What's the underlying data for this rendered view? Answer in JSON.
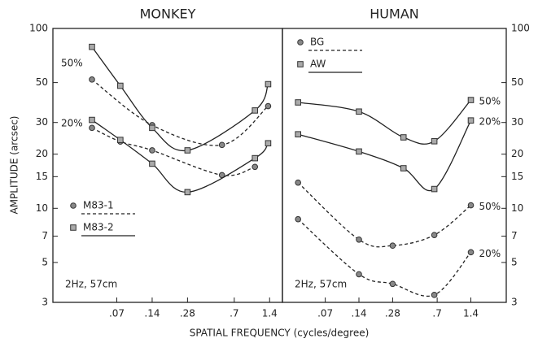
{
  "axis_labels": {
    "x": "SPATIAL FREQUENCY (cycles/degree)",
    "y": "AMPLITUDE (arcsec)"
  },
  "chart_data": [
    {
      "type": "line",
      "title": "MONKEY",
      "xscale": "log",
      "yscale": "log",
      "xlim": [
        0.02,
        1.8
      ],
      "ylim": [
        3,
        100
      ],
      "xticks": [
        {
          "value": 0.07,
          "label": ".07"
        },
        {
          "value": 0.14,
          "label": ".14"
        },
        {
          "value": 0.28,
          "label": ".28"
        },
        {
          "value": 0.7,
          "label": ".7"
        },
        {
          "value": 1.4,
          "label": "1.4"
        }
      ],
      "yticks": [
        3,
        5,
        7,
        10,
        15,
        20,
        30,
        50,
        100
      ],
      "annotations": [
        "50%",
        "20%",
        "2Hz,  57cm"
      ],
      "series": [
        {
          "name": "M83-1",
          "marker": "circle",
          "dashed": true,
          "color": "#222",
          "curves": [
            {
              "x": [
                0.043,
                0.14,
                0.55,
                1.36
              ],
              "values": [
                52,
                29,
                22.5,
                37
              ]
            },
            {
              "x": [
                0.043,
                0.075,
                0.14,
                0.55,
                1.05
              ],
              "values": [
                28,
                23.5,
                21,
                15.3,
                17
              ]
            }
          ]
        },
        {
          "name": "M83-2",
          "marker": "square",
          "dashed": false,
          "color": "#222",
          "curves": [
            {
              "x": [
                0.043,
                0.075,
                0.14,
                0.28,
                1.05,
                1.36
              ],
              "values": [
                79,
                48,
                28,
                21,
                35,
                49
              ]
            },
            {
              "x": [
                0.043,
                0.075,
                0.14,
                0.28,
                1.05,
                1.36
              ],
              "values": [
                31,
                24,
                17.7,
                12.3,
                19,
                23
              ]
            }
          ]
        }
      ]
    },
    {
      "type": "line",
      "title": "HUMAN",
      "xscale": "log",
      "yscale": "log",
      "xlim": [
        0.029,
        2.9
      ],
      "ylim": [
        3,
        100
      ],
      "xticks": [
        {
          "value": 0.07,
          "label": ".07"
        },
        {
          "value": 0.14,
          "label": ".14"
        },
        {
          "value": 0.28,
          "label": ".28"
        },
        {
          "value": 0.7,
          "label": ".7"
        },
        {
          "value": 1.4,
          "label": "1.4"
        }
      ],
      "yticks": [
        3,
        5,
        7,
        10,
        15,
        20,
        30,
        50,
        100
      ],
      "annotations": [
        "2Hz,  57cm"
      ],
      "series": [
        {
          "name": "BG",
          "marker": "circle",
          "dashed": true,
          "color": "#222",
          "curves": [
            {
              "label": "50%",
              "x": [
                0.04,
                0.14,
                0.28,
                0.66,
                1.4
              ],
              "values": [
                13.9,
                6.7,
                6.2,
                7.1,
                10.4
              ]
            },
            {
              "label": "20%",
              "x": [
                0.04,
                0.14,
                0.28,
                0.66,
                1.4
              ],
              "values": [
                8.7,
                4.3,
                3.8,
                3.3,
                5.7
              ]
            }
          ]
        },
        {
          "name": "AW",
          "marker": "square",
          "dashed": false,
          "color": "#222",
          "curves": [
            {
              "label": "50%",
              "x": [
                0.04,
                0.14,
                0.35,
                0.66,
                1.4
              ],
              "values": [
                38.8,
                34.5,
                24.8,
                23.6,
                40
              ]
            },
            {
              "label": "20%",
              "x": [
                0.04,
                0.14,
                0.35,
                0.66,
                1.4
              ],
              "values": [
                25.8,
                20.7,
                16.7,
                12.8,
                30.8
              ]
            }
          ]
        }
      ]
    }
  ]
}
